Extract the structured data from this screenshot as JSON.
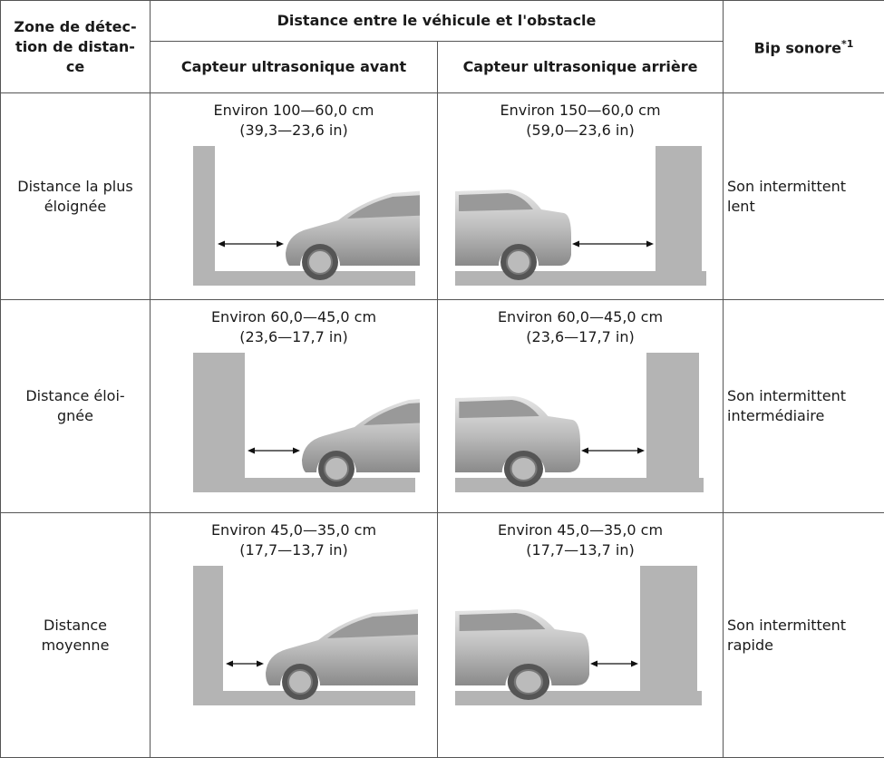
{
  "table": {
    "header": {
      "zone": [
        "Zone de détec-",
        "tion de distan-",
        "ce"
      ],
      "distance": "Distance entre le véhicule et l'obstacle",
      "front": "Capteur ultrasonique avant",
      "rear": "Capteur ultrasonique arrière",
      "beep": "Bip sonore",
      "beep_note": "*1"
    },
    "rows": [
      {
        "zone": [
          "Distance la plus",
          "éloignée"
        ],
        "front": [
          "Environ 100—60,0 cm",
          "(39,3—23,6 in)"
        ],
        "rear": [
          "Environ 150—60,0 cm",
          "(59,0—23,6 in)"
        ],
        "beep": [
          "Son intermittent",
          "lent"
        ]
      },
      {
        "zone": [
          "Distance éloi-",
          "gnée"
        ],
        "front": [
          "Environ 60,0—45,0 cm",
          "(23,6—17,7 in)"
        ],
        "rear": [
          "Environ 60,0—45,0 cm",
          "(23,6—17,7 in)"
        ],
        "beep": [
          "Son intermittent",
          "intermédiaire"
        ]
      },
      {
        "zone": [
          "Distance",
          "moyenne"
        ],
        "front": [
          "Environ 45,0—35,0 cm",
          "(17,7—13,7 in)"
        ],
        "rear": [
          "Environ 45,0—35,0 cm",
          "(17,7—13,7 in)"
        ],
        "beep": [
          "Son intermittent",
          "rapide"
        ]
      }
    ]
  }
}
